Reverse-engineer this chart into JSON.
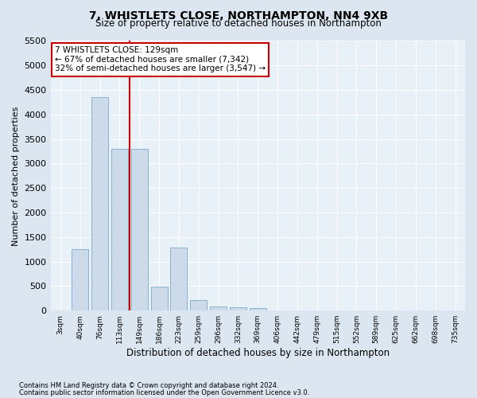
{
  "title": "7, WHISTLETS CLOSE, NORTHAMPTON, NN4 9XB",
  "subtitle": "Size of property relative to detached houses in Northampton",
  "xlabel": "Distribution of detached houses by size in Northampton",
  "ylabel": "Number of detached properties",
  "footnote1": "Contains HM Land Registry data © Crown copyright and database right 2024.",
  "footnote2": "Contains public sector information licensed under the Open Government Licence v3.0.",
  "bar_labels": [
    "3sqm",
    "40sqm",
    "76sqm",
    "113sqm",
    "149sqm",
    "186sqm",
    "223sqm",
    "259sqm",
    "296sqm",
    "332sqm",
    "369sqm",
    "406sqm",
    "442sqm",
    "479sqm",
    "515sqm",
    "552sqm",
    "589sqm",
    "625sqm",
    "662sqm",
    "698sqm",
    "735sqm"
  ],
  "bar_values": [
    0,
    1260,
    4350,
    3300,
    3300,
    490,
    1290,
    220,
    90,
    70,
    60,
    0,
    0,
    0,
    0,
    0,
    0,
    0,
    0,
    0,
    0
  ],
  "bar_color": "#cddaea",
  "bar_edge_color": "#7aaac8",
  "vline_x_index": 3,
  "vline_color": "#cc0000",
  "ylim_max": 5500,
  "yticks": [
    0,
    500,
    1000,
    1500,
    2000,
    2500,
    3000,
    3500,
    4000,
    4500,
    5000,
    5500
  ],
  "annotation_line1": "7 WHISTLETS CLOSE: 129sqm",
  "annotation_line2": "← 67% of detached houses are smaller (7,342)",
  "annotation_line3": "32% of semi-detached houses are larger (3,547) →",
  "annotation_box_color": "#ffffff",
  "annotation_border_color": "#cc0000",
  "bg_color": "#dce6f0",
  "plot_bg_color": "#e8f0f8"
}
